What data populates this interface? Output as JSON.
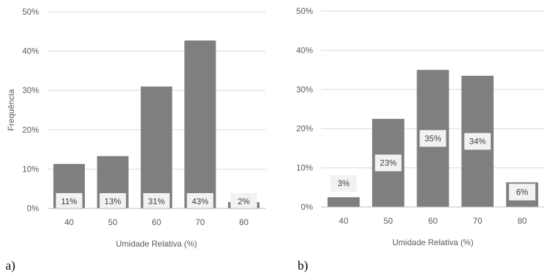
{
  "chart_data": [
    {
      "panel_label": "a)",
      "type": "bar",
      "categories": [
        "40",
        "50",
        "60",
        "70",
        "80"
      ],
      "values": [
        11.3,
        13.3,
        31.0,
        42.7,
        1.6
      ],
      "data_labels": [
        "11%",
        "13%",
        "31%",
        "43%",
        "2%"
      ],
      "xlabel": "Umidade Relativa (%)",
      "ylabel": "Frequência",
      "ylim": [
        0,
        50
      ],
      "yticks": [
        "0%",
        "10%",
        "20%",
        "30%",
        "40%",
        "50%"
      ],
      "grid": true,
      "bar_color": "#7f7f7f"
    },
    {
      "panel_label": "b)",
      "type": "bar",
      "categories": [
        "40",
        "50",
        "60",
        "70",
        "80"
      ],
      "values": [
        2.5,
        22.5,
        35.0,
        33.5,
        6.3
      ],
      "data_labels": [
        "3%",
        "23%",
        "35%",
        "34%",
        "6%"
      ],
      "xlabel": "Umidade Relativa (%)",
      "ylabel": "",
      "ylim": [
        0,
        50
      ],
      "yticks": [
        "0%",
        "10%",
        "20%",
        "30%",
        "40%",
        "50%"
      ],
      "grid": true,
      "bar_color": "#7f7f7f"
    }
  ]
}
